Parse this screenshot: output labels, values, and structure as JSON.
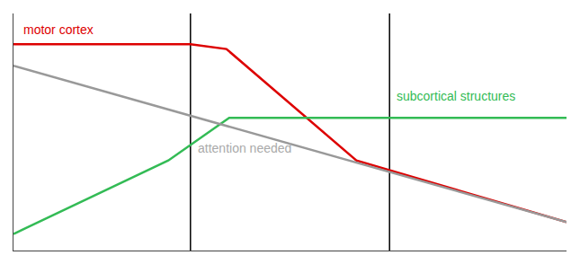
{
  "chart_data": {
    "type": "line",
    "xlim": [
      0,
      10
    ],
    "ylim": [
      0,
      10
    ],
    "xticks": [],
    "yticks": [],
    "tick_labels": false,
    "grid": false,
    "series": [
      {
        "color": "#dd0000",
        "x": [
          0,
          3.2,
          3.85,
          6.2,
          10
        ],
        "values": [
          8.7,
          8.7,
          8.5,
          3.8,
          1.2
        ]
      },
      {
        "color": "#33bb55",
        "x": [
          0,
          2.8,
          3.9,
          10
        ],
        "values": [
          0.7,
          3.8,
          5.6,
          5.6
        ]
      },
      {
        "color": "#999999",
        "x": [
          0,
          10
        ],
        "values": [
          7.8,
          1.2
        ]
      }
    ],
    "vlines": {
      "x": [
        3.2,
        6.8
      ],
      "color": "#000000"
    },
    "annotations": [
      {
        "text": "motor cortex",
        "x": 0.15,
        "y": 9.3,
        "color": "#dd0000"
      },
      {
        "text": "subcortical structures",
        "x": 6.9,
        "y": 6.5,
        "color": "#33bb55"
      },
      {
        "text": "attention needed",
        "x": 3.3,
        "y": 4.3,
        "color": "#aaaaaa"
      }
    ]
  }
}
